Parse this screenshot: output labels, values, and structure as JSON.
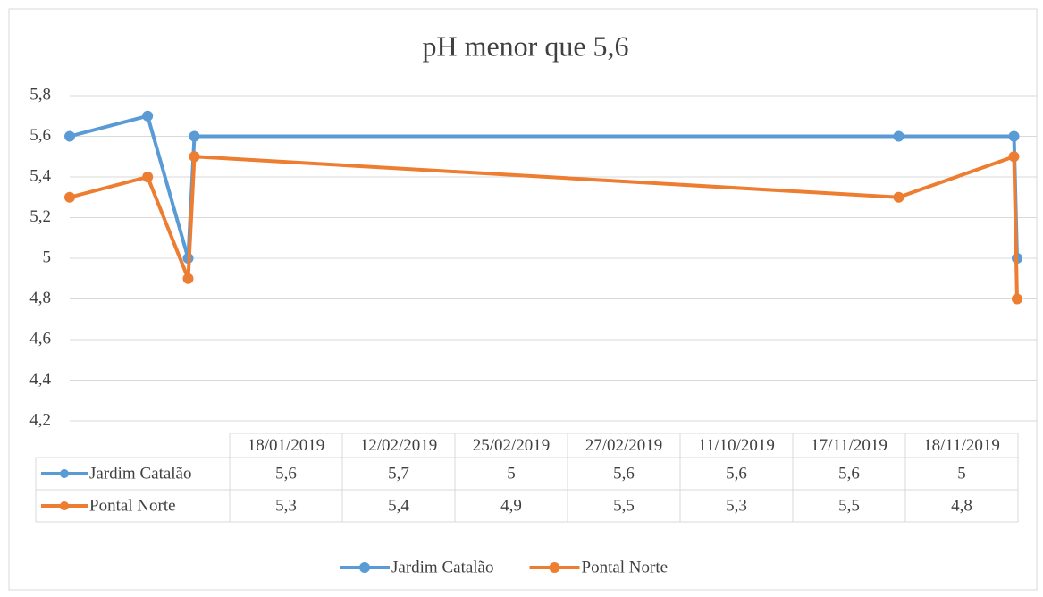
{
  "chart_data": {
    "type": "line",
    "title": "pH menor que 5,6",
    "x": [
      "18/01/2019",
      "12/02/2019",
      "25/02/2019",
      "27/02/2019",
      "11/10/2019",
      "17/11/2019",
      "18/11/2019"
    ],
    "series": [
      {
        "name": "Jardim Catalão",
        "color": "#5b9bd5",
        "values": [
          5.6,
          5.7,
          5,
          5.6,
          5.6,
          5.6,
          5
        ],
        "value_labels": [
          "5,6",
          "5,7",
          "5",
          "5,6",
          "5,6",
          "5,6",
          "5"
        ]
      },
      {
        "name": "Pontal Norte",
        "color": "#ed7d31",
        "values": [
          5.3,
          5.4,
          4.9,
          5.5,
          5.3,
          5.5,
          4.8
        ],
        "value_labels": [
          "5,3",
          "5,4",
          "4,9",
          "5,5",
          "5,3",
          "5,5",
          "4,8"
        ]
      }
    ],
    "ylim": [
      4.2,
      5.8
    ],
    "yticks": [
      {
        "value": 4.2,
        "label": "4,2"
      },
      {
        "value": 4.4,
        "label": "4,4"
      },
      {
        "value": 4.6,
        "label": "4,6"
      },
      {
        "value": 4.8,
        "label": "4,8"
      },
      5,
      {
        "value": 5.2,
        "label": "5,2"
      },
      {
        "value": 5.4,
        "label": "5,4"
      },
      {
        "value": 5.6,
        "label": "5,6"
      },
      {
        "value": 5.8,
        "label": "5,8"
      }
    ],
    "grid": true,
    "legend": "bottom"
  }
}
